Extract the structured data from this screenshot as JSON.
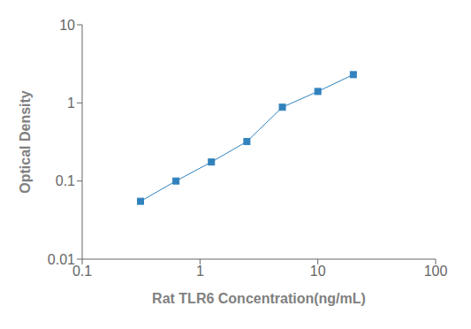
{
  "chart_data": {
    "type": "line",
    "x": [
      0.3125,
      0.625,
      1.25,
      2.5,
      5.0,
      10.0,
      20.0
    ],
    "values": [
      0.055,
      0.1,
      0.175,
      0.32,
      0.88,
      1.4,
      2.3
    ],
    "xlabel": "Rat TLR6 Concentration(ng/mL)",
    "ylabel": "Optical Density",
    "xlim": [
      0.1,
      100
    ],
    "ylim": [
      0.01,
      10
    ],
    "xticks": [
      0.1,
      1,
      10,
      100
    ],
    "yticks": [
      0.01,
      0.1,
      1,
      10
    ],
    "log": true,
    "marker": "square"
  }
}
